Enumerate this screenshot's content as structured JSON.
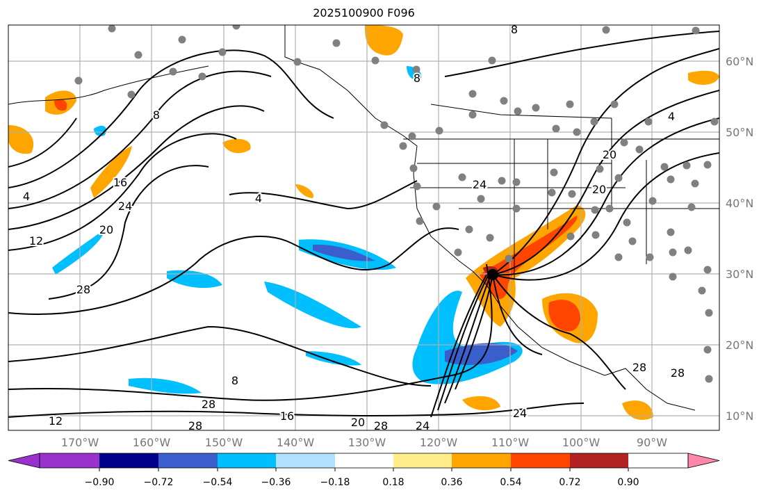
{
  "title": "2025100900 F096",
  "longitude_labels": [
    "170°W",
    "160°W",
    "150°W",
    "140°W",
    "130°W",
    "120°W",
    "110°W",
    "100°W",
    "90°W"
  ],
  "latitude_labels": [
    "60°N",
    "50°N",
    "40°N",
    "30°N",
    "20°N",
    "10°N"
  ],
  "contour_labels": [
    "4",
    "8",
    "12",
    "16",
    "20",
    "24",
    "28",
    "4",
    "8",
    "20",
    "24",
    "28",
    "16",
    "20",
    "28",
    "24",
    "24",
    "28",
    "12",
    "8",
    "4",
    "8",
    "28",
    "28",
    "20"
  ],
  "colorbar": {
    "ticks": [
      "−0.90",
      "−0.72",
      "−0.54",
      "−0.36",
      "−0.18",
      "0.18",
      "0.36",
      "0.54",
      "0.72",
      "0.90"
    ],
    "colors": [
      "#9932CC",
      "#00008B",
      "#3A5FCD",
      "#00BFFF",
      "#B0E2FF",
      "#FFFFFF",
      "#FFEC8B",
      "#FFA500",
      "#FF4500",
      "#B22222",
      "#FF88AA"
    ]
  },
  "colors": {
    "station": "#808080",
    "contour": "#000000",
    "grid": "#b0b0b0"
  }
}
